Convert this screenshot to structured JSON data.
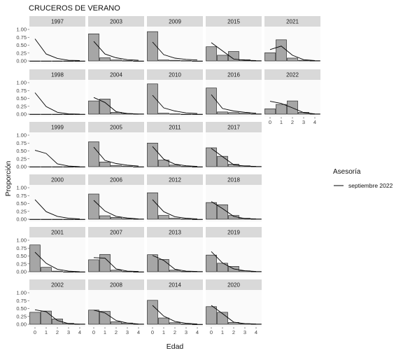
{
  "chart_data": {
    "type": "bar",
    "title": "CRUCEROS DE VERANO",
    "xlabel": "Edad",
    "ylabel": "Proporción",
    "x_ticks": [
      0,
      1,
      2,
      3,
      4
    ],
    "y_ticks": [
      "0.00",
      "0.25",
      "0.50",
      "0.75",
      "1.00"
    ],
    "ylim": [
      0,
      1.0
    ],
    "legend": {
      "title": "Asesoría",
      "entries": [
        "septiembre 2022"
      ],
      "position": "right"
    },
    "grid": false,
    "panels": [
      {
        "year": "1997",
        "col": 0,
        "row": 0,
        "bars": [
          0,
          0,
          0,
          0,
          0
        ],
        "line": [
          0.7,
          0.22,
          0.08,
          0.02,
          0.01
        ]
      },
      {
        "year": "1998",
        "col": 0,
        "row": 1,
        "bars": [
          0,
          0,
          0,
          0,
          0
        ],
        "line": [
          0.68,
          0.24,
          0.06,
          0.01,
          0.0
        ]
      },
      {
        "year": "1999",
        "col": 0,
        "row": 2,
        "bars": [
          0,
          0,
          0,
          0,
          0
        ],
        "line": [
          0.52,
          0.42,
          0.09,
          0.02,
          0.0
        ]
      },
      {
        "year": "2000",
        "col": 0,
        "row": 3,
        "bars": [
          0,
          0,
          0,
          0,
          0
        ],
        "line": [
          0.62,
          0.24,
          0.09,
          0.03,
          0.01
        ]
      },
      {
        "year": "2001",
        "col": 0,
        "row": 4,
        "bars": [
          0.85,
          0.14,
          0.02,
          0,
          0
        ],
        "line": [
          0.62,
          0.27,
          0.08,
          0.02,
          0.0
        ]
      },
      {
        "year": "2002",
        "col": 0,
        "row": 5,
        "bars": [
          0.38,
          0.42,
          0.17,
          0.03,
          0.01
        ],
        "line": [
          0.46,
          0.4,
          0.12,
          0.02,
          0.0
        ]
      },
      {
        "year": "2003",
        "col": 1,
        "row": 0,
        "bars": [
          0.86,
          0.1,
          0.03,
          0.01,
          0
        ],
        "line": [
          0.62,
          0.22,
          0.1,
          0.04,
          0.02
        ]
      },
      {
        "year": "2004",
        "col": 1,
        "row": 1,
        "bars": [
          0.42,
          0.48,
          0.06,
          0.02,
          0.01
        ],
        "line": [
          0.53,
          0.37,
          0.08,
          0.02,
          0.0
        ]
      },
      {
        "year": "2005",
        "col": 1,
        "row": 2,
        "bars": [
          0.79,
          0.15,
          0.04,
          0.02,
          0
        ],
        "line": [
          0.62,
          0.2,
          0.1,
          0.05,
          0.02
        ]
      },
      {
        "year": "2006",
        "col": 1,
        "row": 3,
        "bars": [
          0.8,
          0.11,
          0.06,
          0.02,
          0.01
        ],
        "line": [
          0.6,
          0.26,
          0.09,
          0.04,
          0.01
        ]
      },
      {
        "year": "2007",
        "col": 1,
        "row": 4,
        "bars": [
          0.38,
          0.55,
          0.05,
          0.01,
          0
        ],
        "line": [
          0.45,
          0.43,
          0.09,
          0.02,
          0.01
        ]
      },
      {
        "year": "2008",
        "col": 1,
        "row": 5,
        "bars": [
          0.45,
          0.41,
          0.08,
          0.04,
          0.01
        ],
        "line": [
          0.45,
          0.36,
          0.12,
          0.04,
          0.01
        ]
      },
      {
        "year": "2009",
        "col": 2,
        "row": 0,
        "bars": [
          0.93,
          0.03,
          0.02,
          0.01,
          0
        ],
        "line": [
          0.6,
          0.2,
          0.09,
          0.05,
          0.03
        ]
      },
      {
        "year": "2010",
        "col": 2,
        "row": 1,
        "bars": [
          0.96,
          0.03,
          0.01,
          0,
          0
        ],
        "line": [
          0.6,
          0.2,
          0.1,
          0.04,
          0.02
        ]
      },
      {
        "year": "2011",
        "col": 2,
        "row": 2,
        "bars": [
          0.75,
          0.21,
          0.05,
          0.01,
          0
        ],
        "line": [
          0.64,
          0.24,
          0.08,
          0.03,
          0.01
        ]
      },
      {
        "year": "2012",
        "col": 2,
        "row": 3,
        "bars": [
          0.84,
          0.12,
          0.03,
          0.01,
          0
        ],
        "line": [
          0.62,
          0.24,
          0.08,
          0.03,
          0.01
        ]
      },
      {
        "year": "2013",
        "col": 2,
        "row": 4,
        "bars": [
          0.54,
          0.39,
          0.05,
          0.01,
          0.01
        ],
        "line": [
          0.52,
          0.36,
          0.08,
          0.02,
          0.01
        ]
      },
      {
        "year": "2014",
        "col": 2,
        "row": 5,
        "bars": [
          0.76,
          0.2,
          0.05,
          0.01,
          0
        ],
        "line": [
          0.6,
          0.26,
          0.09,
          0.03,
          0.01
        ]
      },
      {
        "year": "2015",
        "col": 3,
        "row": 0,
        "bars": [
          0.45,
          0.18,
          0.3,
          0.04,
          0.01
        ],
        "line": [
          0.58,
          0.32,
          0.06,
          0.02,
          0.01
        ]
      },
      {
        "year": "2016",
        "col": 3,
        "row": 1,
        "bars": [
          0.83,
          0.07,
          0.05,
          0.03,
          0.01
        ],
        "line": [
          0.62,
          0.18,
          0.1,
          0.06,
          0.03
        ]
      },
      {
        "year": "2017",
        "col": 3,
        "row": 2,
        "bars": [
          0.6,
          0.33,
          0.08,
          0.03,
          0.01
        ],
        "line": [
          0.58,
          0.32,
          0.06,
          0.02,
          0.01
        ]
      },
      {
        "year": "2018",
        "col": 3,
        "row": 3,
        "bars": [
          0.53,
          0.46,
          0.12,
          0.03,
          0.01
        ],
        "line": [
          0.56,
          0.34,
          0.09,
          0.02,
          0.01
        ]
      },
      {
        "year": "2019",
        "col": 3,
        "row": 4,
        "bars": [
          0.53,
          0.27,
          0.17,
          0.03,
          0.01
        ],
        "line": [
          0.64,
          0.28,
          0.09,
          0.03,
          0.01
        ]
      },
      {
        "year": "2020",
        "col": 3,
        "row": 5,
        "bars": [
          0.56,
          0.38,
          0.06,
          0.02,
          0.01
        ],
        "line": [
          0.6,
          0.34,
          0.07,
          0.02,
          0.01
        ]
      },
      {
        "year": "2021",
        "col": 4,
        "row": 0,
        "bars": [
          0.26,
          0.67,
          0.09,
          0.02,
          0.01
        ],
        "line": [
          0.36,
          0.47,
          0.18,
          0.04,
          0.01
        ]
      },
      {
        "year": "2022",
        "col": 4,
        "row": 1,
        "bars": [
          0.17,
          0.31,
          0.42,
          0.06,
          0.01
        ],
        "line": [
          0.41,
          0.34,
          0.2,
          0.05,
          0.01
        ]
      }
    ],
    "colors": {
      "bar_fill": "#a6a6a6",
      "bar_stroke": "#111111",
      "line": "#000000",
      "strip_bg": "#d9d9d9",
      "panel_bg": "#fafafa",
      "tick_text": "#444444"
    }
  }
}
